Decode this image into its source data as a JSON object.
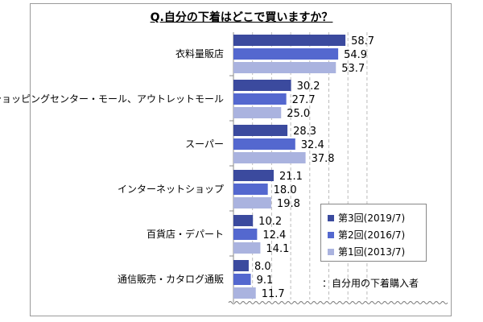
{
  "title": "Q.自分の下着はどこで買いますか？",
  "note": "：自分用の下着購入者",
  "chart_data": {
    "type": "bar",
    "orientation": "horizontal",
    "categories": [
      "衣料量販店",
      "ショッピングセンター・モール、アウトレットモール",
      "スーパー",
      "インターネットショップ",
      "百貨店・デパート",
      "通信販売・カタログ通販"
    ],
    "series": [
      {
        "name": "第3回(2019/7)",
        "values": [
          58.7,
          30.2,
          28.3,
          21.1,
          10.2,
          8.0
        ],
        "color": "#3b4a9e"
      },
      {
        "name": "第2回(2016/7)",
        "values": [
          54.9,
          27.7,
          32.4,
          18.0,
          12.4,
          9.1
        ],
        "color": "#5468cf"
      },
      {
        "name": "第1回(2013/7)",
        "values": [
          53.7,
          25.0,
          37.8,
          19.8,
          14.1,
          11.7
        ],
        "color": "#aab3df"
      }
    ],
    "xlim": [
      0,
      70
    ],
    "grid": "vertical dashed",
    "legend_position": "bottom-right"
  }
}
